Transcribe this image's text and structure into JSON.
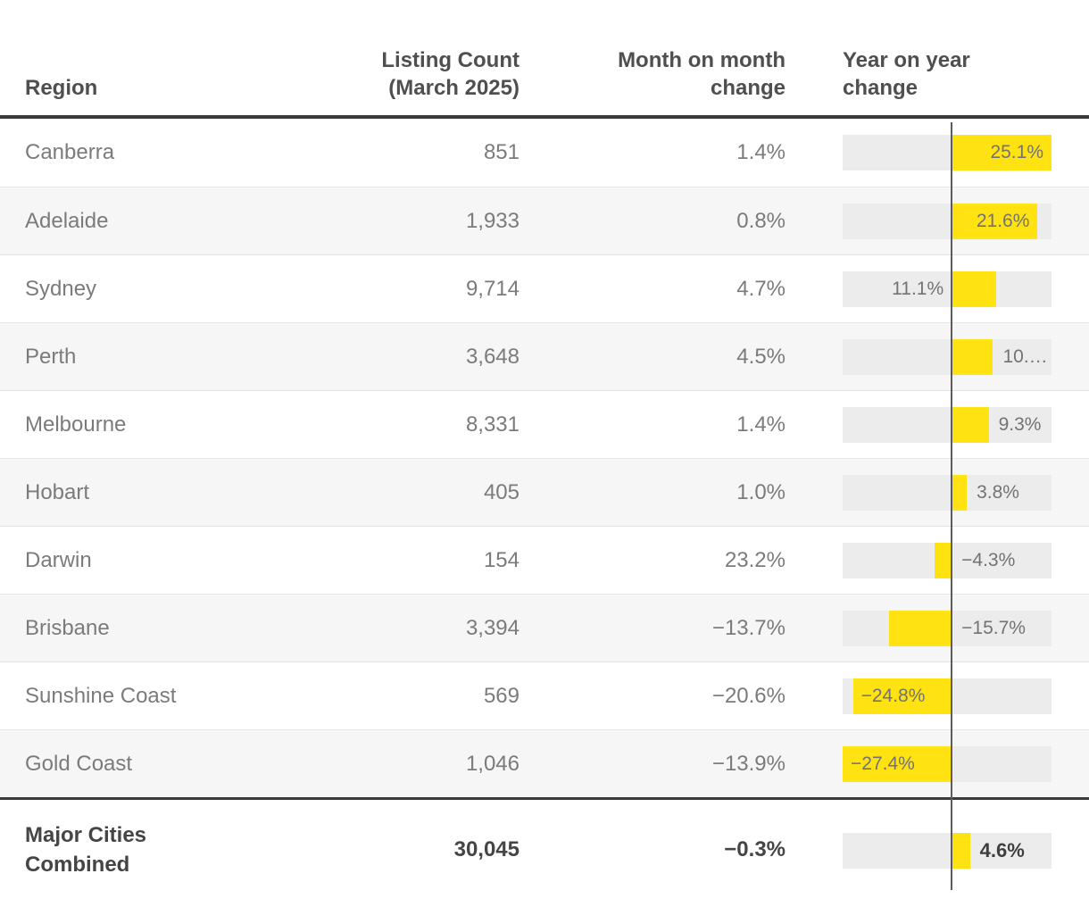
{
  "table": {
    "columns": {
      "region": "Region",
      "listing_count": "Listing Count (March 2025)",
      "mom": "Month on month change",
      "yoy": "Year on year change"
    },
    "rows": [
      {
        "region": "Canberra",
        "listing_count": "851",
        "mom": "1.4%",
        "yoy": 25.1,
        "yoy_label": "25.1%",
        "label_pos": "inside-end"
      },
      {
        "region": "Adelaide",
        "listing_count": "1,933",
        "mom": "0.8%",
        "yoy": 21.6,
        "yoy_label": "21.6%",
        "label_pos": "inside-end"
      },
      {
        "region": "Sydney",
        "listing_count": "9,714",
        "mom": "4.7%",
        "yoy": 11.1,
        "yoy_label": "11.1%",
        "label_pos": "before-zero"
      },
      {
        "region": "Perth",
        "listing_count": "3,648",
        "mom": "4.5%",
        "yoy": 10.4,
        "yoy_label": "10.…",
        "label_pos": "after-bar"
      },
      {
        "region": "Melbourne",
        "listing_count": "8,331",
        "mom": "1.4%",
        "yoy": 9.3,
        "yoy_label": "9.3%",
        "label_pos": "after-bar"
      },
      {
        "region": "Hobart",
        "listing_count": "405",
        "mom": "1.0%",
        "yoy": 3.8,
        "yoy_label": "3.8%",
        "label_pos": "after-bar"
      },
      {
        "region": "Darwin",
        "listing_count": "154",
        "mom": "23.2%",
        "yoy": -4.3,
        "yoy_label": "−4.3%",
        "label_pos": "after-zero"
      },
      {
        "region": "Brisbane",
        "listing_count": "3,394",
        "mom": "−13.7%",
        "yoy": -15.7,
        "yoy_label": "−15.7%",
        "label_pos": "after-zero"
      },
      {
        "region": "Sunshine Coast",
        "listing_count": "569",
        "mom": "−20.6%",
        "yoy": -24.8,
        "yoy_label": "−24.8%",
        "label_pos": "inside-start"
      },
      {
        "region": "Gold Coast",
        "listing_count": "1,046",
        "mom": "−13.9%",
        "yoy": -27.4,
        "yoy_label": "−27.4%",
        "label_pos": "inside-start"
      }
    ],
    "footer": {
      "region": "Major Cities Combined",
      "listing_count": "30,045",
      "mom": "−0.3%",
      "yoy": 4.6,
      "yoy_label": "4.6%",
      "label_pos": "after-bar"
    }
  },
  "axis": {
    "min": -27.4,
    "max": 25.1
  },
  "colors": {
    "bar": "#ffe212",
    "track": "#ececec",
    "zero_line": "#5c5c5c",
    "stripe": "#f6f6f6",
    "heavy_rule": "#3a3a3a",
    "body_text": "#7b7b7b",
    "header_text": "#4f4f4f"
  },
  "chart_data": {
    "type": "table",
    "title": "",
    "columns": [
      "Region",
      "Listing Count (March 2025)",
      "Month on month change",
      "Year on year change"
    ],
    "rows": [
      [
        "Canberra",
        "851",
        "1.4%",
        "25.1%"
      ],
      [
        "Adelaide",
        "1,933",
        "0.8%",
        "21.6%"
      ],
      [
        "Sydney",
        "9,714",
        "4.7%",
        "11.1%"
      ],
      [
        "Perth",
        "3,648",
        "4.5%",
        "10.…"
      ],
      [
        "Melbourne",
        "8,331",
        "1.4%",
        "9.3%"
      ],
      [
        "Hobart",
        "405",
        "1.0%",
        "3.8%"
      ],
      [
        "Darwin",
        "154",
        "23.2%",
        "−4.3%"
      ],
      [
        "Brisbane",
        "3,394",
        "−13.7%",
        "−15.7%"
      ],
      [
        "Sunshine Coast",
        "569",
        "−20.6%",
        "−24.8%"
      ],
      [
        "Gold Coast",
        "1,046",
        "−13.9%",
        "−27.4%"
      ],
      [
        "Major Cities Combined",
        "30,045",
        "−0.3%",
        "4.6%"
      ]
    ],
    "embedded_bar_chart": {
      "type": "bar",
      "column": "Year on year change",
      "categories": [
        "Canberra",
        "Adelaide",
        "Sydney",
        "Perth",
        "Melbourne",
        "Hobart",
        "Darwin",
        "Brisbane",
        "Sunshine Coast",
        "Gold Coast",
        "Major Cities Combined"
      ],
      "values": [
        25.1,
        21.6,
        11.1,
        10.4,
        9.3,
        3.8,
        -4.3,
        -15.7,
        -24.8,
        -27.4,
        4.6
      ],
      "xlim": [
        -27.4,
        25.1
      ],
      "orientation": "horizontal",
      "bar_color": "#ffe212",
      "grid": false,
      "legend": "none"
    }
  }
}
